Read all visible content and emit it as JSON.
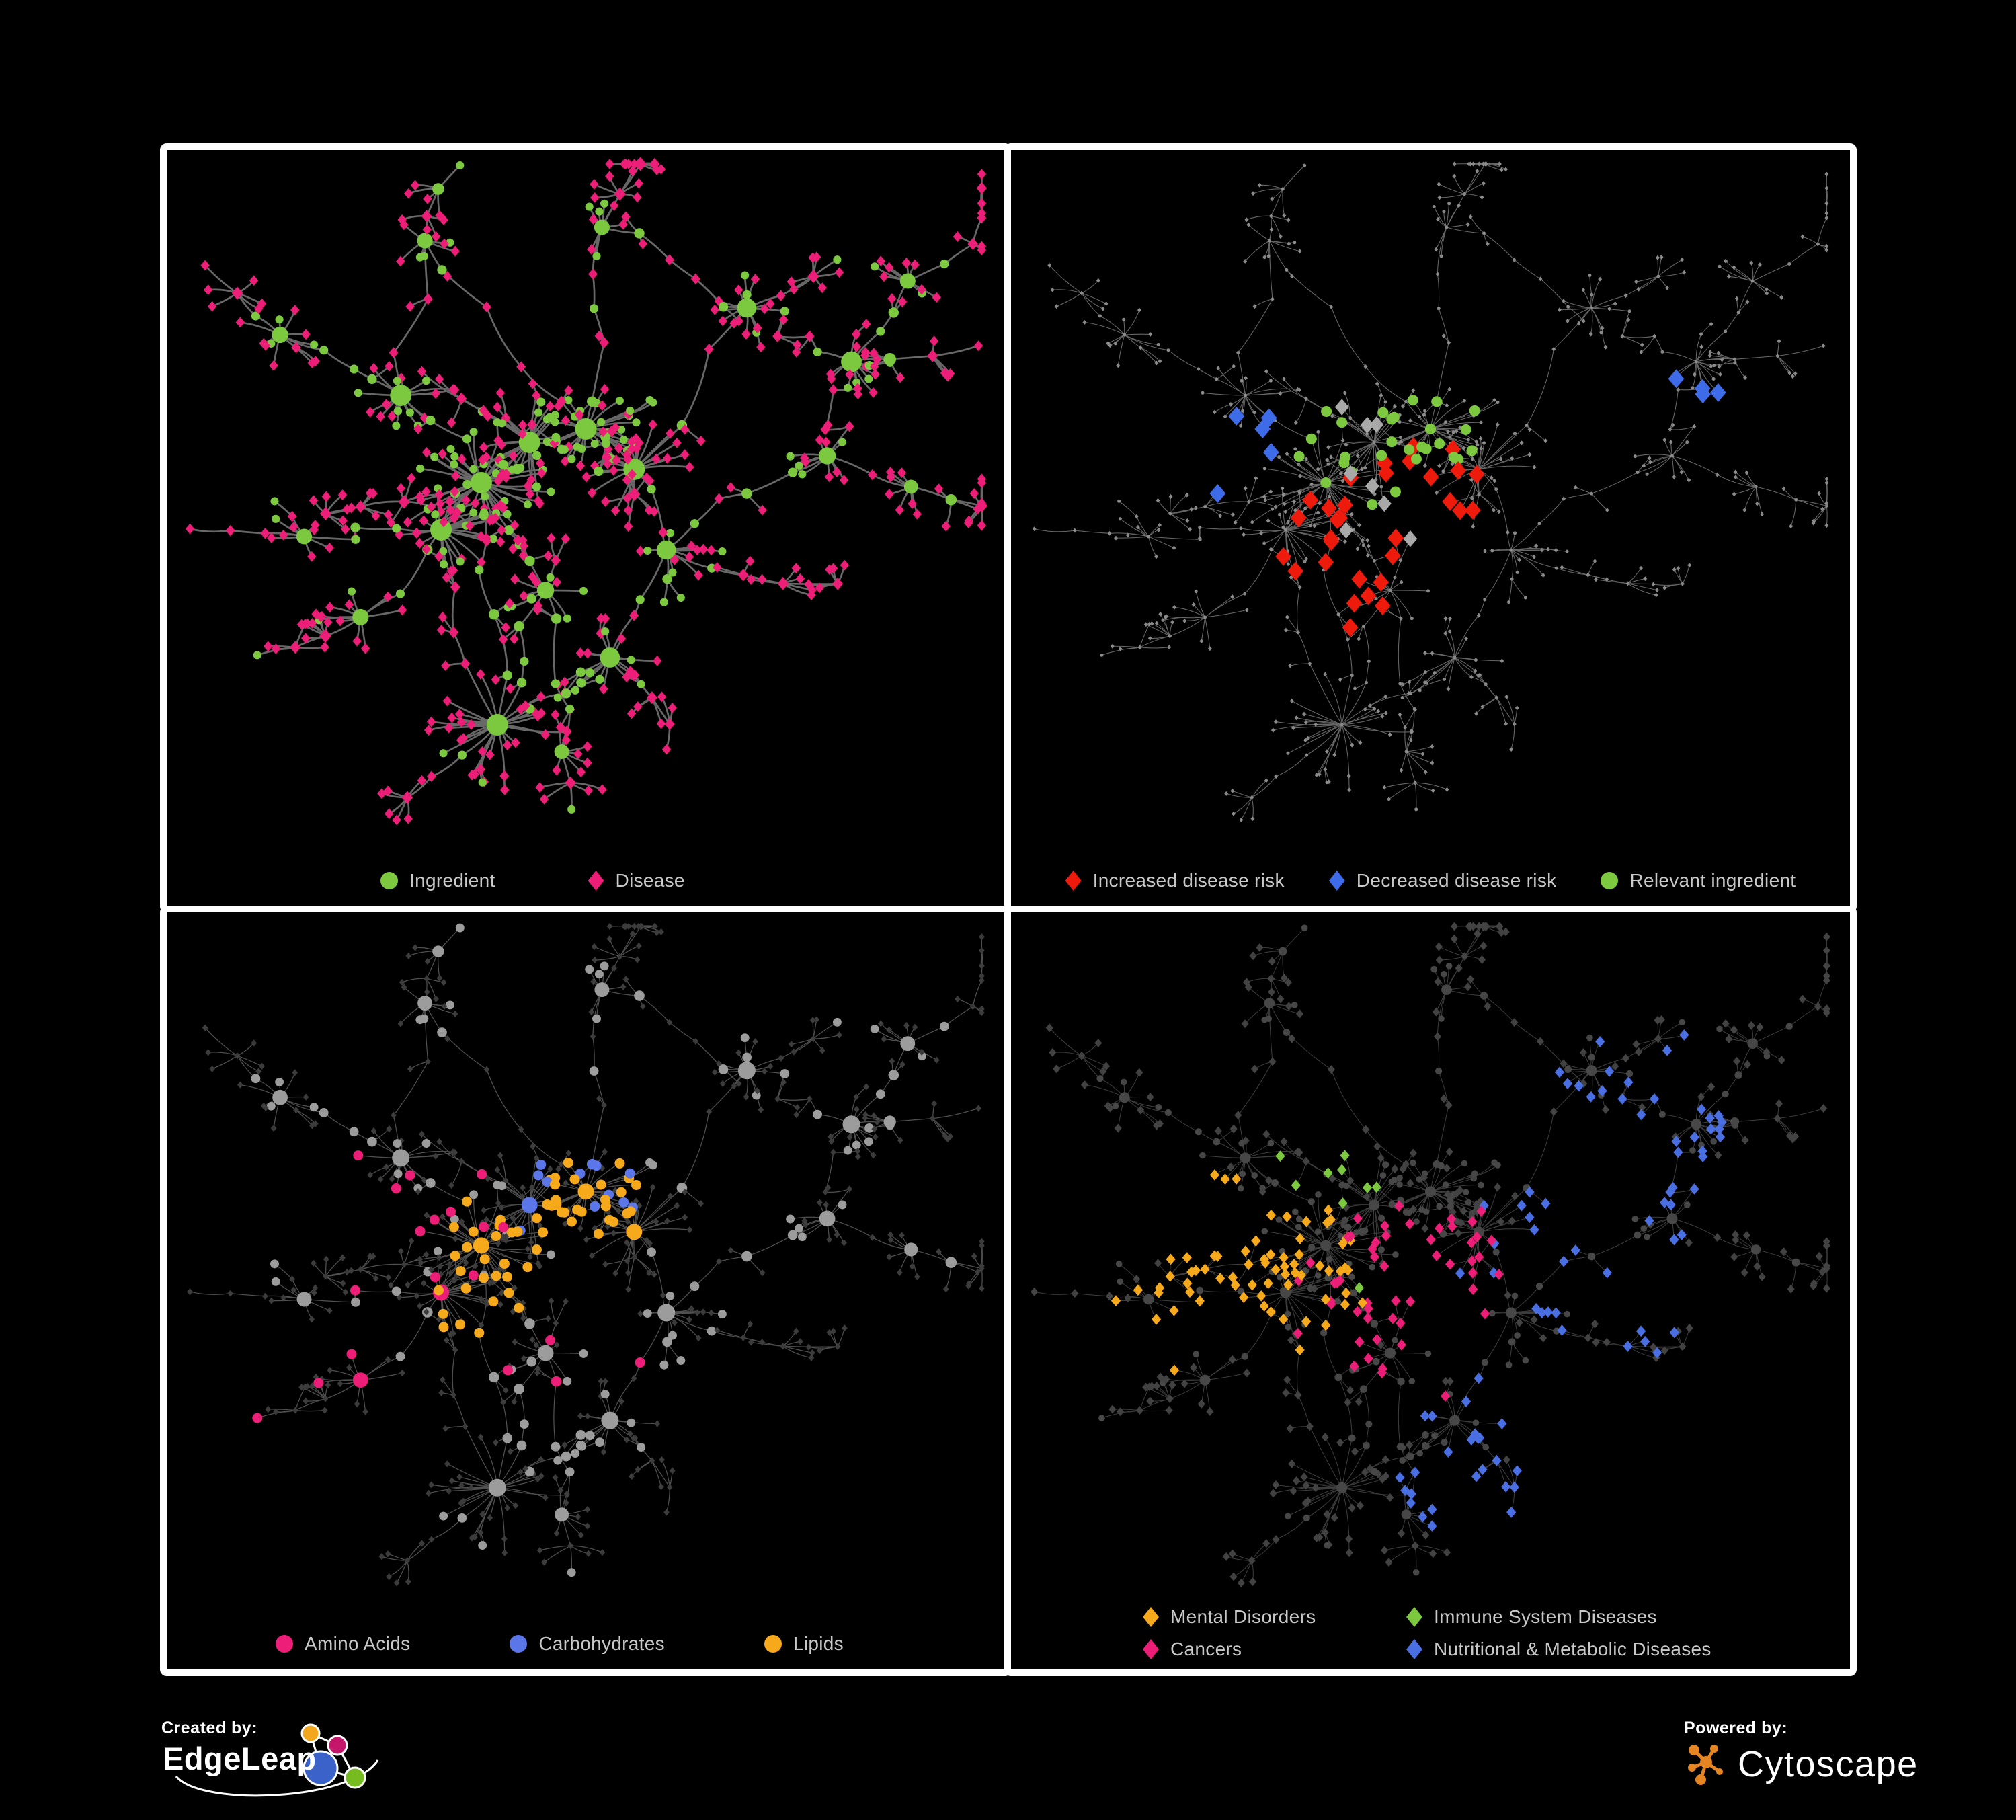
{
  "page": {
    "bg": "#000000",
    "panel_border": "#ffffff",
    "legend_text_color": "#c8c8c8"
  },
  "footer": {
    "created_by_label": "Created by:",
    "edgeleap_text": "EdgeLeap",
    "powered_by_label": "Powered by:",
    "cytoscape_text": "Cytoscape",
    "cytoscape_orange": "#e58523",
    "edgeleap_palette": {
      "blue": "#3a62c8",
      "orange": "#f2a71d",
      "pink": "#c4176b",
      "green": "#76bc21"
    }
  },
  "panels": [
    {
      "name": "ingredient-disease-network",
      "mode": "types",
      "legend": {
        "layout": "row",
        "items": [
          {
            "label": "Ingredient",
            "shape": "circle",
            "color": "#7cc83e"
          },
          {
            "label": "Disease",
            "shape": "diamond",
            "color": "#ec1e78"
          }
        ]
      },
      "edge": {
        "color": "#6e6e6e",
        "width": 2.7,
        "opacity": 0.95
      }
    },
    {
      "name": "disease-risk-network",
      "mode": "risk",
      "legend": {
        "layout": "row",
        "items": [
          {
            "label": "Increased disease risk",
            "shape": "diamond",
            "color": "#ee1b0c"
          },
          {
            "label": "Decreased disease risk",
            "shape": "diamond",
            "color": "#3e6be8"
          },
          {
            "label": "Relevant ingredient",
            "shape": "circle",
            "color": "#7cc83e"
          }
        ]
      },
      "edge": {
        "color": "#7a7a7a",
        "width": 1.05,
        "opacity": 0.85
      },
      "base": {
        "dot": "#8a8a8a"
      },
      "groups": [
        {
          "color": "#ee1b0c",
          "shape": "diamond",
          "count": 31,
          "size": 12.5,
          "centers": [
            [
              0.48,
              0.45,
              0.16
            ],
            [
              0.4,
              0.62,
              0.1
            ]
          ],
          "floor": 0.015
        },
        {
          "color": "#3e6be8",
          "shape": "diamond",
          "count": 9,
          "size": 12.5,
          "centers": [
            [
              0.255,
              0.42,
              0.06
            ],
            [
              0.84,
              0.36,
              0.035
            ]
          ],
          "floor": 0.0
        },
        {
          "color": "#a9a9a9",
          "shape": "diamond",
          "count": 8,
          "size": 11,
          "centers": [
            [
              0.42,
              0.47,
              0.18
            ]
          ],
          "floor": 0.004
        },
        {
          "color": "#7cc83e",
          "shape": "circle",
          "count": 28,
          "size": 8,
          "centers": [
            [
              0.45,
              0.42,
              0.2
            ]
          ],
          "floor": 0.012
        }
      ]
    },
    {
      "name": "ingredient-classes-network",
      "mode": "classes",
      "legend": {
        "layout": "row",
        "items": [
          {
            "label": "Amino Acids",
            "shape": "circle",
            "color": "#ec1e78"
          },
          {
            "label": "Carbohydrates",
            "shape": "circle",
            "color": "#5b76e8"
          },
          {
            "label": "Lipids",
            "shape": "circle",
            "color": "#f5a91b"
          }
        ]
      },
      "edge": {
        "color": "#9a9a9a",
        "width": 1.25,
        "opacity": 0.52
      },
      "base": {
        "circle": "#9c9c9c",
        "diamond": "#3c3c3c"
      },
      "groups": [
        {
          "color": "#f5a91b",
          "shape": "circle",
          "count": 58,
          "size": 0,
          "centers": [
            [
              0.5,
              0.42,
              0.09
            ],
            [
              0.4,
              0.55,
              0.09
            ]
          ],
          "floor": 0.02
        },
        {
          "color": "#5b76e8",
          "shape": "circle",
          "count": 13,
          "size": 0,
          "centers": [
            [
              0.5,
              0.4,
              0.055
            ]
          ],
          "floor": 0.006
        },
        {
          "color": "#ec1e78",
          "shape": "circle",
          "count": 21,
          "size": 0,
          "centers": [
            [
              0.32,
              0.55,
              0.3
            ]
          ],
          "floor": 0.05
        }
      ]
    },
    {
      "name": "disease-categories-network",
      "mode": "categories",
      "legend": {
        "layout": "grid2",
        "items": [
          {
            "label": "Mental Disorders",
            "shape": "diamond",
            "color": "#f5a91b"
          },
          {
            "label": "Immune System Diseases",
            "shape": "diamond",
            "color": "#7cc83e"
          },
          {
            "label": "Cancers",
            "shape": "diamond",
            "color": "#ec1e78"
          },
          {
            "label": "Nutritional & Metabolic Diseases",
            "shape": "diamond",
            "color": "#4a6fe3"
          }
        ]
      },
      "edge": {
        "color": "#949494",
        "width": 1.0,
        "opacity": 0.42
      },
      "base": {
        "circle": "#474747",
        "diamond": "#424242"
      },
      "groups": [
        {
          "color": "#f5a91b",
          "shape": "diamond",
          "count": 68,
          "size": 7.5,
          "centers": [
            [
              0.26,
              0.52,
              0.1
            ]
          ],
          "floor": 0.004
        },
        {
          "color": "#ec1e78",
          "shape": "diamond",
          "count": 52,
          "size": 7.5,
          "centers": [
            [
              0.47,
              0.56,
              0.11
            ]
          ],
          "floor": 0.01
        },
        {
          "color": "#4a6fe3",
          "shape": "diamond",
          "count": 80,
          "size": 7.5,
          "centers": [
            [
              0.68,
              0.52,
              0.13
            ],
            [
              0.8,
              0.25,
              0.12
            ],
            [
              0.55,
              0.82,
              0.1
            ]
          ],
          "floor": 0.03
        },
        {
          "color": "#7cc83e",
          "shape": "diamond",
          "count": 9,
          "size": 7.5,
          "centers": [
            [
              0.38,
              0.45,
              0.3
            ]
          ],
          "floor": 0.05
        }
      ]
    }
  ],
  "network": {
    "seed": 1337,
    "hubs": [
      [
        0.37,
        0.48,
        34,
        0.085,
        0.45
      ],
      [
        0.43,
        0.42,
        26,
        0.07,
        0.4
      ],
      [
        0.32,
        0.55,
        22,
        0.065,
        0.35
      ],
      [
        0.5,
        0.4,
        30,
        0.055,
        0.75
      ],
      [
        0.56,
        0.46,
        22,
        0.065,
        0.15
      ],
      [
        0.39,
        0.84,
        26,
        0.075,
        0.06
      ],
      [
        0.53,
        0.74,
        14,
        0.05,
        0.2
      ],
      [
        0.27,
        0.35,
        16,
        0.06,
        0.3
      ],
      [
        0.12,
        0.26,
        10,
        0.045,
        0.25
      ],
      [
        0.15,
        0.56,
        9,
        0.04,
        0.2
      ],
      [
        0.22,
        0.68,
        10,
        0.045,
        0.2
      ],
      [
        0.7,
        0.22,
        12,
        0.05,
        0.2
      ],
      [
        0.83,
        0.3,
        14,
        0.05,
        0.25
      ],
      [
        0.8,
        0.44,
        10,
        0.045,
        0.2
      ],
      [
        0.6,
        0.58,
        12,
        0.05,
        0.3
      ],
      [
        0.45,
        0.64,
        10,
        0.045,
        0.3
      ],
      [
        0.3,
        0.12,
        8,
        0.04,
        0.25
      ],
      [
        0.52,
        0.1,
        8,
        0.04,
        0.25
      ],
      [
        0.9,
        0.18,
        9,
        0.04,
        0.2
      ],
      [
        0.47,
        0.88,
        8,
        0.04,
        0.15
      ]
    ],
    "links": [
      [
        0,
        1
      ],
      [
        0,
        2
      ],
      [
        1,
        3
      ],
      [
        3,
        4
      ],
      [
        1,
        4
      ],
      [
        0,
        15
      ],
      [
        15,
        5
      ],
      [
        5,
        6
      ],
      [
        14,
        6
      ],
      [
        4,
        14
      ],
      [
        0,
        7
      ],
      [
        7,
        8
      ],
      [
        2,
        9
      ],
      [
        2,
        10
      ],
      [
        3,
        16
      ],
      [
        3,
        17
      ],
      [
        4,
        11
      ],
      [
        11,
        12
      ],
      [
        12,
        18
      ],
      [
        12,
        13
      ],
      [
        15,
        19
      ],
      [
        7,
        16
      ],
      [
        17,
        11
      ],
      [
        13,
        14
      ],
      [
        0,
        5
      ],
      [
        2,
        5
      ]
    ],
    "branches": [
      [
        18,
        -20,
        4
      ],
      [
        12,
        -5,
        3
      ],
      [
        13,
        15,
        4
      ],
      [
        6,
        55,
        3
      ],
      [
        19,
        95,
        2
      ],
      [
        5,
        125,
        3
      ],
      [
        10,
        155,
        3
      ],
      [
        9,
        175,
        3
      ],
      [
        8,
        -140,
        3
      ],
      [
        16,
        -95,
        3
      ],
      [
        17,
        -75,
        3
      ],
      [
        11,
        -40,
        3
      ],
      [
        0,
        168,
        4
      ],
      [
        14,
        30,
        4
      ],
      [
        1,
        -150,
        3
      ],
      [
        4,
        75,
        2
      ]
    ]
  }
}
